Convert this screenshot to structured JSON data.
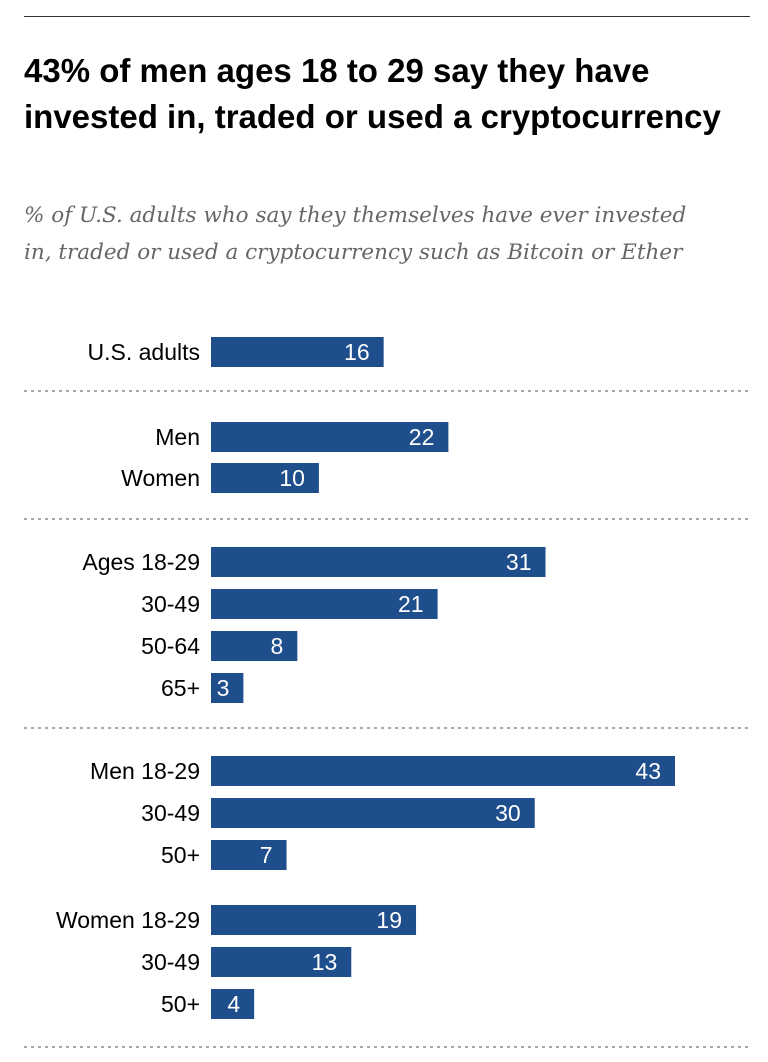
{
  "chart_data": {
    "type": "bar",
    "orientation": "horizontal",
    "title": "43% of men ages 18 to 29 say they have invested in, traded or used a cryptocurrency",
    "subtitle": "% of U.S. adults who say they themselves have ever invested in, traded or used a cryptocurrency such as Bitcoin or Ether",
    "bar_color": "#1f4e8c",
    "xlim": [
      0,
      43
    ],
    "grid": false,
    "categories": [
      "U.S. adults",
      "Men",
      "Women",
      "Ages 18-29",
      "30-49",
      "50-64",
      "65+",
      "Men 18-29",
      "30-49",
      "50+",
      "Women 18-29",
      "30-49",
      "50+"
    ],
    "values": [
      16,
      22,
      10,
      31,
      21,
      8,
      3,
      43,
      30,
      7,
      19,
      13,
      4
    ]
  }
}
